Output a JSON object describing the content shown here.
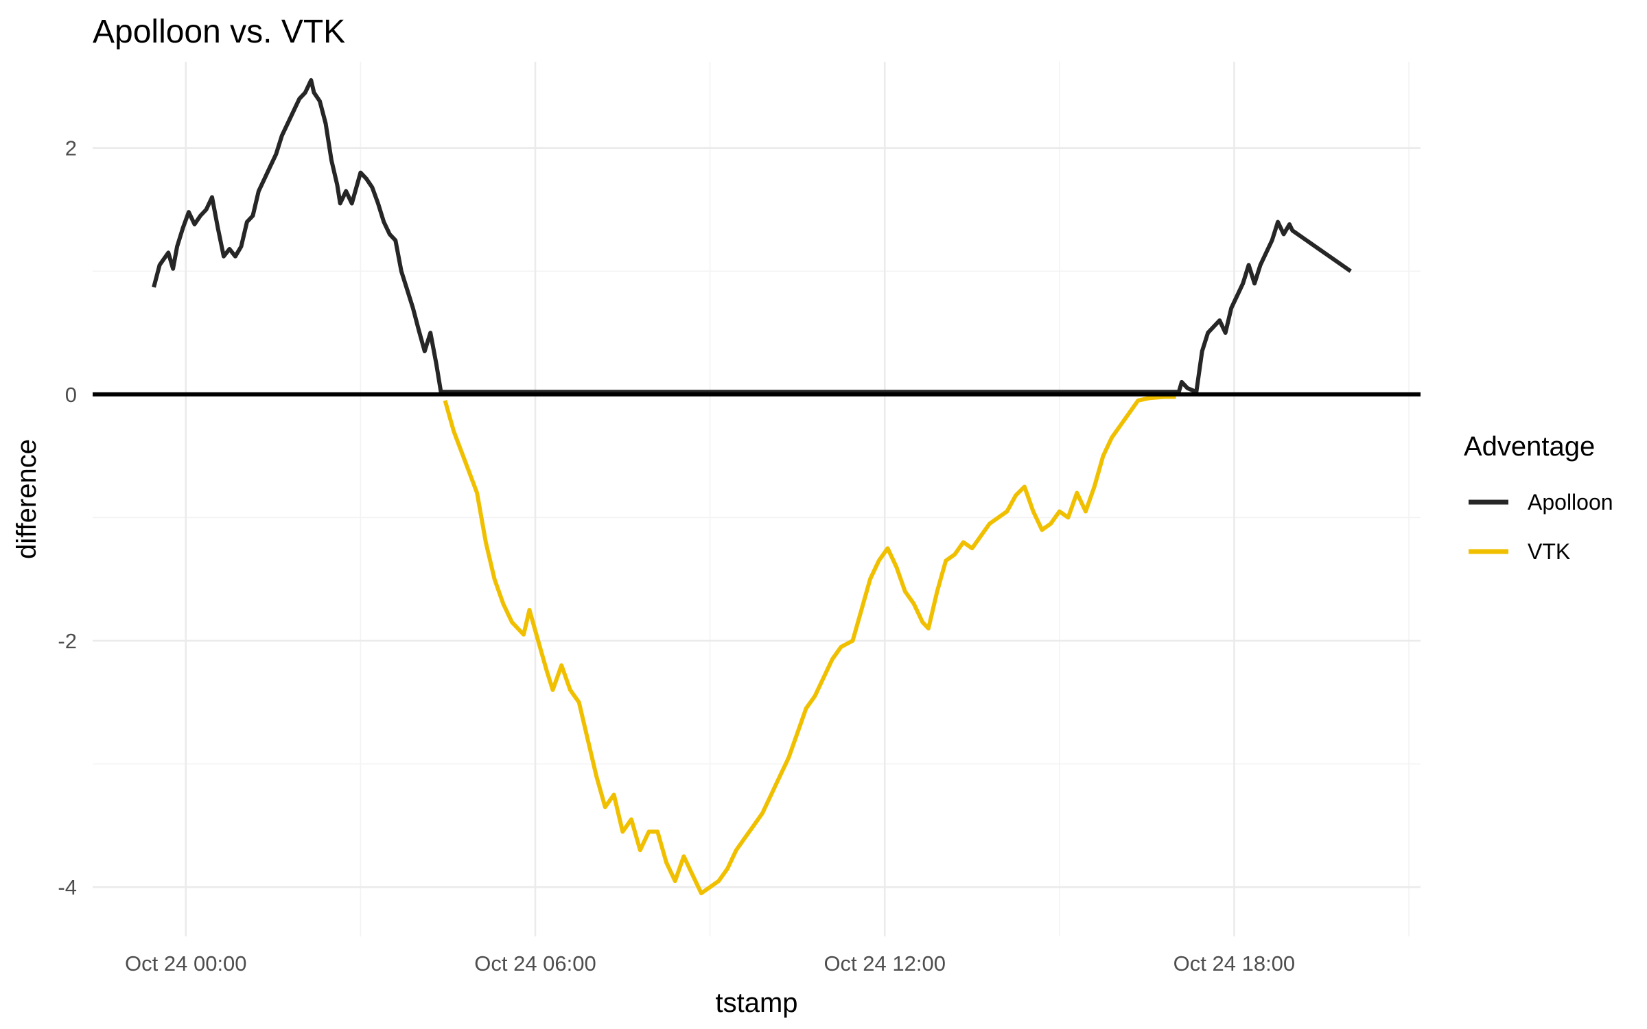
{
  "chart_data": {
    "type": "line",
    "title": "Apolloon vs. VTK",
    "xlabel": "tstamp",
    "ylabel": "difference",
    "x_unit": "hours since Oct 24 00:00",
    "xlim": [
      -1.6,
      21.2
    ],
    "ylim": [
      -4.4,
      2.7
    ],
    "x_ticks": [
      {
        "value": 0,
        "label": "Oct 24 00:00"
      },
      {
        "value": 6,
        "label": "Oct 24 06:00"
      },
      {
        "value": 12,
        "label": "Oct 24 12:00"
      },
      {
        "value": 18,
        "label": "Oct 24 18:00"
      }
    ],
    "x_minor_ticks": [
      3,
      9,
      15,
      21
    ],
    "y_ticks": [
      {
        "value": 2,
        "label": "2"
      },
      {
        "value": 0,
        "label": "0"
      },
      {
        "value": -2,
        "label": "-2"
      },
      {
        "value": -4,
        "label": "-4"
      }
    ],
    "y_minor_ticks": [
      1,
      -1,
      -3
    ],
    "reference_line": {
      "y": 0,
      "color": "#000000"
    },
    "grid": true,
    "legend": {
      "title": "Adventage",
      "position": "right",
      "entries": [
        {
          "label": "Apolloon",
          "color": "#262626"
        },
        {
          "label": "VTK",
          "color": "#f0c000"
        }
      ]
    },
    "series": [
      {
        "name": "Apolloon",
        "color": "#262626",
        "points": [
          [
            -0.55,
            0.87
          ],
          [
            -0.45,
            1.05
          ],
          [
            -0.3,
            1.15
          ],
          [
            -0.22,
            1.02
          ],
          [
            -0.15,
            1.2
          ],
          [
            -0.05,
            1.35
          ],
          [
            0.05,
            1.48
          ],
          [
            0.15,
            1.38
          ],
          [
            0.25,
            1.45
          ],
          [
            0.35,
            1.5
          ],
          [
            0.45,
            1.6
          ],
          [
            0.55,
            1.35
          ],
          [
            0.65,
            1.12
          ],
          [
            0.75,
            1.18
          ],
          [
            0.85,
            1.12
          ],
          [
            0.95,
            1.2
          ],
          [
            1.05,
            1.4
          ],
          [
            1.15,
            1.45
          ],
          [
            1.25,
            1.65
          ],
          [
            1.35,
            1.75
          ],
          [
            1.45,
            1.85
          ],
          [
            1.55,
            1.95
          ],
          [
            1.65,
            2.1
          ],
          [
            1.75,
            2.2
          ],
          [
            1.85,
            2.3
          ],
          [
            1.95,
            2.4
          ],
          [
            2.05,
            2.45
          ],
          [
            2.15,
            2.55
          ],
          [
            2.2,
            2.45
          ],
          [
            2.3,
            2.38
          ],
          [
            2.4,
            2.2
          ],
          [
            2.5,
            1.9
          ],
          [
            2.6,
            1.7
          ],
          [
            2.65,
            1.55
          ],
          [
            2.75,
            1.65
          ],
          [
            2.85,
            1.55
          ],
          [
            3.0,
            1.8
          ],
          [
            3.1,
            1.75
          ],
          [
            3.2,
            1.68
          ],
          [
            3.3,
            1.55
          ],
          [
            3.4,
            1.4
          ],
          [
            3.5,
            1.3
          ],
          [
            3.6,
            1.25
          ],
          [
            3.7,
            1.0
          ],
          [
            3.8,
            0.85
          ],
          [
            3.9,
            0.7
          ],
          [
            4.0,
            0.52
          ],
          [
            4.1,
            0.35
          ],
          [
            4.2,
            0.5
          ],
          [
            4.3,
            0.25
          ],
          [
            4.38,
            0.02
          ],
          [
            17.05,
            0.02
          ],
          [
            17.1,
            0.1
          ],
          [
            17.2,
            0.05
          ],
          [
            17.35,
            0.02
          ],
          [
            17.45,
            0.35
          ],
          [
            17.55,
            0.5
          ],
          [
            17.65,
            0.55
          ],
          [
            17.75,
            0.6
          ],
          [
            17.85,
            0.5
          ],
          [
            17.95,
            0.7
          ],
          [
            18.05,
            0.8
          ],
          [
            18.15,
            0.9
          ],
          [
            18.25,
            1.05
          ],
          [
            18.35,
            0.9
          ],
          [
            18.45,
            1.05
          ],
          [
            18.55,
            1.15
          ],
          [
            18.65,
            1.25
          ],
          [
            18.75,
            1.4
          ],
          [
            18.85,
            1.3
          ],
          [
            18.95,
            1.38
          ],
          [
            19.0,
            1.33
          ],
          [
            20.0,
            1.0
          ]
        ]
      },
      {
        "name": "VTK",
        "color": "#f0c000",
        "points": [
          [
            4.45,
            -0.05
          ],
          [
            4.6,
            -0.3
          ],
          [
            4.8,
            -0.55
          ],
          [
            5.0,
            -0.8
          ],
          [
            5.15,
            -1.2
          ],
          [
            5.3,
            -1.5
          ],
          [
            5.45,
            -1.7
          ],
          [
            5.6,
            -1.85
          ],
          [
            5.8,
            -1.95
          ],
          [
            5.9,
            -1.75
          ],
          [
            6.05,
            -2.0
          ],
          [
            6.2,
            -2.25
          ],
          [
            6.3,
            -2.4
          ],
          [
            6.45,
            -2.2
          ],
          [
            6.6,
            -2.4
          ],
          [
            6.75,
            -2.5
          ],
          [
            6.9,
            -2.8
          ],
          [
            7.05,
            -3.1
          ],
          [
            7.2,
            -3.35
          ],
          [
            7.35,
            -3.25
          ],
          [
            7.5,
            -3.55
          ],
          [
            7.65,
            -3.45
          ],
          [
            7.8,
            -3.7
          ],
          [
            7.95,
            -3.55
          ],
          [
            8.1,
            -3.55
          ],
          [
            8.25,
            -3.8
          ],
          [
            8.4,
            -3.95
          ],
          [
            8.55,
            -3.75
          ],
          [
            8.7,
            -3.9
          ],
          [
            8.85,
            -4.05
          ],
          [
            9.0,
            -4.0
          ],
          [
            9.15,
            -3.95
          ],
          [
            9.3,
            -3.85
          ],
          [
            9.45,
            -3.7
          ],
          [
            9.6,
            -3.6
          ],
          [
            9.75,
            -3.5
          ],
          [
            9.9,
            -3.4
          ],
          [
            10.05,
            -3.25
          ],
          [
            10.2,
            -3.1
          ],
          [
            10.35,
            -2.95
          ],
          [
            10.5,
            -2.75
          ],
          [
            10.65,
            -2.55
          ],
          [
            10.8,
            -2.45
          ],
          [
            10.95,
            -2.3
          ],
          [
            11.1,
            -2.15
          ],
          [
            11.25,
            -2.05
          ],
          [
            11.45,
            -2.0
          ],
          [
            11.6,
            -1.75
          ],
          [
            11.75,
            -1.5
          ],
          [
            11.9,
            -1.35
          ],
          [
            12.05,
            -1.25
          ],
          [
            12.2,
            -1.4
          ],
          [
            12.35,
            -1.6
          ],
          [
            12.5,
            -1.7
          ],
          [
            12.65,
            -1.85
          ],
          [
            12.75,
            -1.9
          ],
          [
            12.9,
            -1.6
          ],
          [
            13.05,
            -1.35
          ],
          [
            13.2,
            -1.3
          ],
          [
            13.35,
            -1.2
          ],
          [
            13.5,
            -1.25
          ],
          [
            13.65,
            -1.15
          ],
          [
            13.8,
            -1.05
          ],
          [
            13.95,
            -1.0
          ],
          [
            14.1,
            -0.95
          ],
          [
            14.25,
            -0.82
          ],
          [
            14.4,
            -0.75
          ],
          [
            14.55,
            -0.95
          ],
          [
            14.7,
            -1.1
          ],
          [
            14.85,
            -1.05
          ],
          [
            15.0,
            -0.95
          ],
          [
            15.15,
            -1.0
          ],
          [
            15.3,
            -0.8
          ],
          [
            15.45,
            -0.95
          ],
          [
            15.6,
            -0.75
          ],
          [
            15.75,
            -0.5
          ],
          [
            15.9,
            -0.35
          ],
          [
            16.05,
            -0.25
          ],
          [
            16.2,
            -0.15
          ],
          [
            16.35,
            -0.05
          ],
          [
            16.55,
            -0.03
          ],
          [
            16.8,
            -0.02
          ],
          [
            17.0,
            -0.02
          ]
        ]
      }
    ]
  }
}
